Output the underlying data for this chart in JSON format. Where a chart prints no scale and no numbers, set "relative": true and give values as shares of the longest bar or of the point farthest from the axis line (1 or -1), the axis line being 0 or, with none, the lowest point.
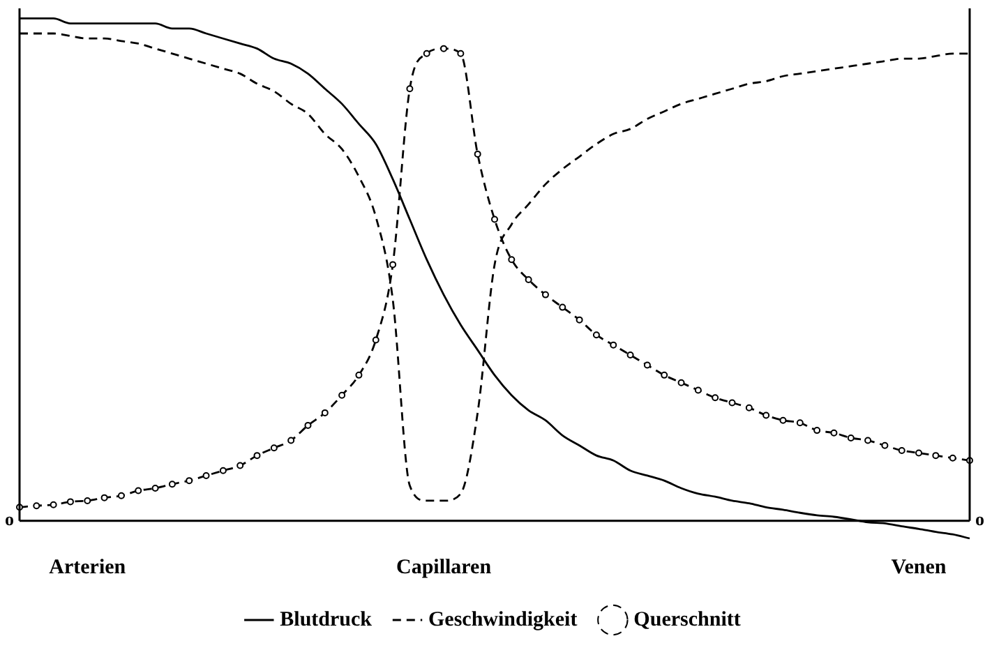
{
  "chart_data": {
    "type": "line",
    "relative": true,
    "legend": "bottom",
    "grid": false,
    "categories": [
      null,
      null,
      null,
      null,
      "Arterien",
      null,
      null,
      null,
      null,
      null,
      null,
      null,
      null,
      null,
      null,
      null,
      null,
      null,
      null,
      null,
      null,
      null,
      null,
      null,
      null,
      "Capillaren",
      null,
      null,
      null,
      null,
      null,
      null,
      null,
      null,
      null,
      null,
      null,
      null,
      null,
      null,
      null,
      null,
      null,
      null,
      null,
      null,
      null,
      null,
      null,
      null,
      null,
      null,
      null,
      "Venen",
      null,
      null,
      null
    ],
    "annotations": [
      "o",
      "o"
    ],
    "series": [
      {
        "name": "Blutdruck",
        "color": "#000000",
        "line_style": "solid",
        "marker": "none",
        "values": [
          1.0,
          1.0,
          1.0,
          0.99,
          0.99,
          0.99,
          0.99,
          0.99,
          0.99,
          0.98,
          0.98,
          0.97,
          0.96,
          0.95,
          0.94,
          0.92,
          0.91,
          0.89,
          0.86,
          0.83,
          0.79,
          0.75,
          0.68,
          0.6,
          0.52,
          0.45,
          0.39,
          0.34,
          0.29,
          0.25,
          0.22,
          0.2,
          0.17,
          0.15,
          0.13,
          0.12,
          0.1,
          0.09,
          0.08,
          0.065,
          0.054,
          0.048,
          0.04,
          0.035,
          0.027,
          0.022,
          0.016,
          0.011,
          0.008,
          0.003,
          -0.003,
          -0.005,
          -0.011,
          -0.016,
          -0.022,
          -0.027,
          -0.035
        ]
      },
      {
        "name": "Geschwindigkeit",
        "color": "#000000",
        "line_style": "dashed",
        "marker": "none",
        "values": [
          0.97,
          0.97,
          0.97,
          0.965,
          0.96,
          0.96,
          0.955,
          0.95,
          0.94,
          0.93,
          0.92,
          0.91,
          0.9,
          0.89,
          0.87,
          0.855,
          0.83,
          0.81,
          0.77,
          0.74,
          0.685,
          0.605,
          0.44,
          0.07,
          0.04,
          0.04,
          0.054,
          0.215,
          0.51,
          0.59,
          0.63,
          0.67,
          0.7,
          0.725,
          0.75,
          0.77,
          0.78,
          0.8,
          0.815,
          0.83,
          0.84,
          0.85,
          0.86,
          0.87,
          0.875,
          0.885,
          0.89,
          0.895,
          0.9,
          0.905,
          0.91,
          0.915,
          0.92,
          0.92,
          0.925,
          0.93,
          0.93
        ]
      },
      {
        "name": "Querschnitt",
        "color": "#000000",
        "line_style": "dashed",
        "marker": "circle",
        "values": [
          0.027,
          0.03,
          0.032,
          0.038,
          0.04,
          0.046,
          0.05,
          0.06,
          0.065,
          0.073,
          0.08,
          0.09,
          0.1,
          0.11,
          0.13,
          0.145,
          0.16,
          0.19,
          0.215,
          0.25,
          0.29,
          0.36,
          0.51,
          0.86,
          0.93,
          0.94,
          0.93,
          0.73,
          0.6,
          0.52,
          0.48,
          0.45,
          0.425,
          0.4,
          0.37,
          0.35,
          0.33,
          0.31,
          0.29,
          0.275,
          0.26,
          0.245,
          0.235,
          0.225,
          0.21,
          0.2,
          0.195,
          0.18,
          0.175,
          0.165,
          0.16,
          0.15,
          0.14,
          0.135,
          0.13,
          0.125,
          0.12
        ]
      }
    ]
  }
}
